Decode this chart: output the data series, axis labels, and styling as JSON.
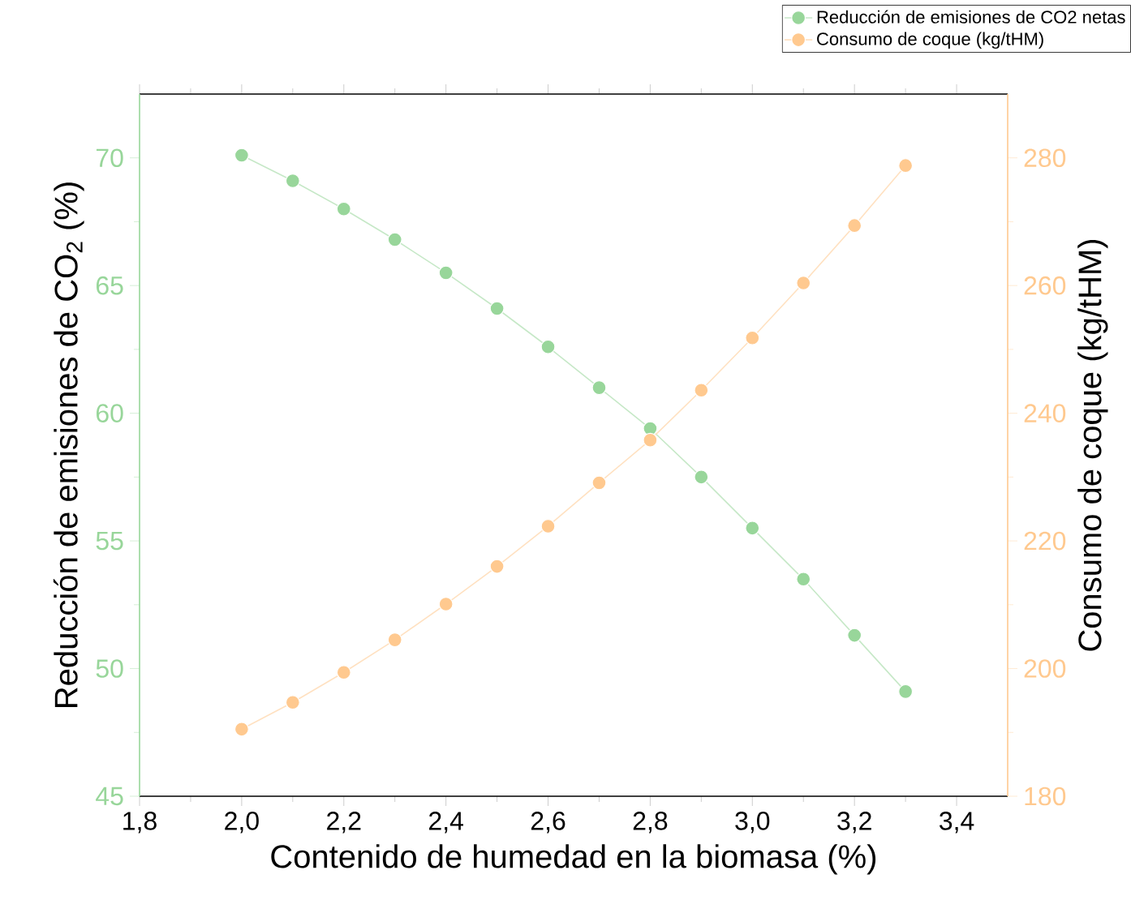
{
  "chart_data": {
    "type": "line",
    "xlabel": "Contenido de humedad en la biomasa (%)",
    "ylabel": "Reducción de emisiones de CO$_{2}$ (%)",
    "y2label": "Consumo de coque (kg/tHM)",
    "x": [
      2.0,
      2.1,
      2.2,
      2.3,
      2.4,
      2.5,
      2.6,
      2.7,
      2.8,
      2.9,
      3.0,
      3.1,
      3.2,
      3.3
    ],
    "series": [
      {
        "name": "Reducción de emisiones de CO2 netas",
        "color": "#98d69a",
        "axis": "y",
        "values": [
          70.1,
          69.1,
          68.0,
          66.8,
          65.5,
          64.1,
          62.6,
          61.0,
          59.4,
          57.5,
          55.5,
          53.5,
          51.3,
          49.1
        ]
      },
      {
        "name": "Consumo de coque (kg/tHM)",
        "color": "#ffc98f",
        "axis": "y2",
        "values": [
          190.5,
          194.7,
          199.4,
          204.5,
          210.1,
          216.0,
          222.3,
          229.1,
          235.8,
          243.6,
          251.8,
          260.4,
          269.4,
          278.8
        ]
      }
    ],
    "xlim": [
      1.8,
      3.5
    ],
    "xticks": [
      {
        "value": 1.8,
        "label": "1,8"
      },
      {
        "value": 2.0,
        "label": "2,0"
      },
      {
        "value": 2.2,
        "label": "2,2"
      },
      {
        "value": 2.4,
        "label": "2,4"
      },
      {
        "value": 2.6,
        "label": "2,6"
      },
      {
        "value": 2.8,
        "label": "2,8"
      },
      {
        "value": 3.0,
        "label": "3,0"
      },
      {
        "value": 3.2,
        "label": "3,2"
      },
      {
        "value": 3.4,
        "label": "3,4"
      }
    ],
    "ylim": [
      45,
      72.5
    ],
    "yticks": [
      45,
      50,
      55,
      60,
      65,
      70
    ],
    "y2lim": [
      180,
      290
    ],
    "y2ticks": [
      180,
      200,
      220,
      240,
      260,
      280
    ],
    "marker": "circle",
    "legend": "top right",
    "grid": false
  }
}
